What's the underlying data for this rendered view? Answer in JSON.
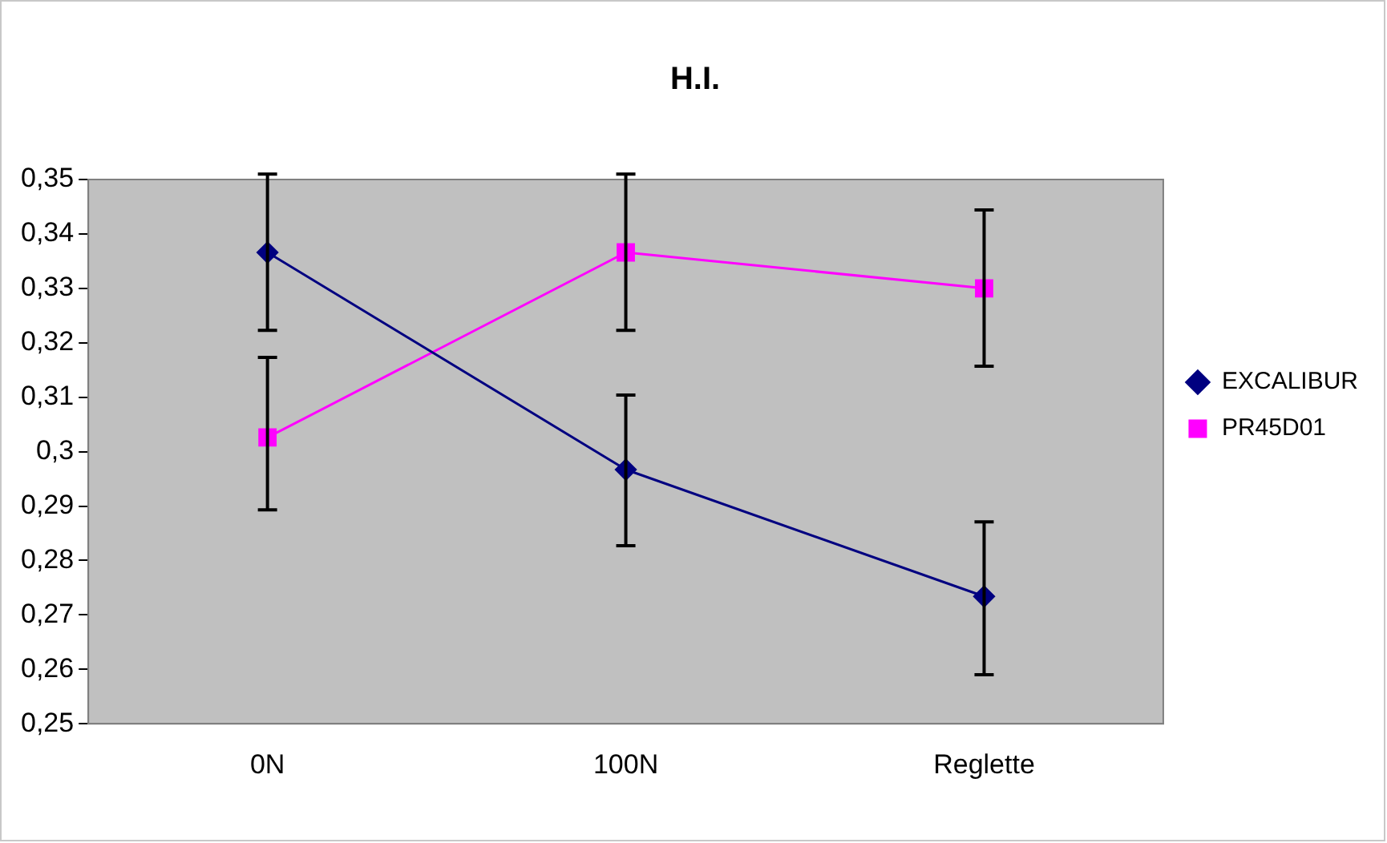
{
  "chart_data": {
    "type": "line",
    "title": "H.I.",
    "categories": [
      "0N",
      "100N",
      "Reglette"
    ],
    "series": [
      {
        "name": "EXCALIBUR",
        "color": "#000080",
        "marker": "diamond",
        "values": [
          0.3366,
          0.2967,
          0.2734
        ],
        "errors": [
          [
            0.3223,
            0.351
          ],
          [
            0.2827,
            0.3104
          ],
          [
            0.259,
            0.2871
          ]
        ]
      },
      {
        "name": "PR45D01",
        "color": "#ff00ff",
        "marker": "square",
        "values": [
          0.3026,
          0.3366,
          0.33
        ],
        "errors": [
          [
            0.2893,
            0.3173
          ],
          [
            0.3223,
            0.351
          ],
          [
            0.3157,
            0.3444
          ]
        ]
      }
    ],
    "ylim": [
      0.25,
      0.35
    ],
    "yticks": [
      {
        "value": 0.25,
        "label": "0,25"
      },
      {
        "value": 0.26,
        "label": "0,26"
      },
      {
        "value": 0.27,
        "label": "0,27"
      },
      {
        "value": 0.28,
        "label": "0,28"
      },
      {
        "value": 0.29,
        "label": "0,29"
      },
      {
        "value": 0.3,
        "label": "0,3"
      },
      {
        "value": 0.31,
        "label": "0,31"
      },
      {
        "value": 0.32,
        "label": "0,32"
      },
      {
        "value": 0.33,
        "label": "0,33"
      },
      {
        "value": 0.34,
        "label": "0,34"
      },
      {
        "value": 0.35,
        "label": "0,35"
      }
    ],
    "grid": false,
    "legend": "right",
    "line_style": "solid"
  }
}
